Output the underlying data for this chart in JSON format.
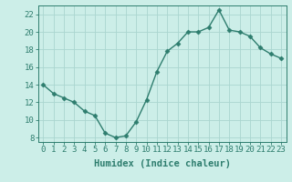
{
  "x": [
    0,
    1,
    2,
    3,
    4,
    5,
    6,
    7,
    8,
    9,
    10,
    11,
    12,
    13,
    14,
    15,
    16,
    17,
    18,
    19,
    20,
    21,
    22,
    23
  ],
  "y": [
    14,
    13,
    12.5,
    12,
    11,
    10.5,
    8.5,
    8,
    8.2,
    9.8,
    12.3,
    15.5,
    17.8,
    18.7,
    20,
    20,
    20.5,
    22.5,
    20.2,
    20,
    19.5,
    18.2,
    17.5,
    17
  ],
  "line_color": "#2e7d6e",
  "marker": "D",
  "marker_size": 2.5,
  "bg_color": "#cceee8",
  "grid_color": "#aad6d0",
  "xlabel": "Humidex (Indice chaleur)",
  "ylim": [
    7.5,
    23.0
  ],
  "xlim": [
    -0.5,
    23.5
  ],
  "yticks": [
    8,
    10,
    12,
    14,
    16,
    18,
    20,
    22
  ],
  "xticks": [
    0,
    1,
    2,
    3,
    4,
    5,
    6,
    7,
    8,
    9,
    10,
    11,
    12,
    13,
    14,
    15,
    16,
    17,
    18,
    19,
    20,
    21,
    22,
    23
  ],
  "tick_fontsize": 6.5,
  "xlabel_fontsize": 7.5
}
